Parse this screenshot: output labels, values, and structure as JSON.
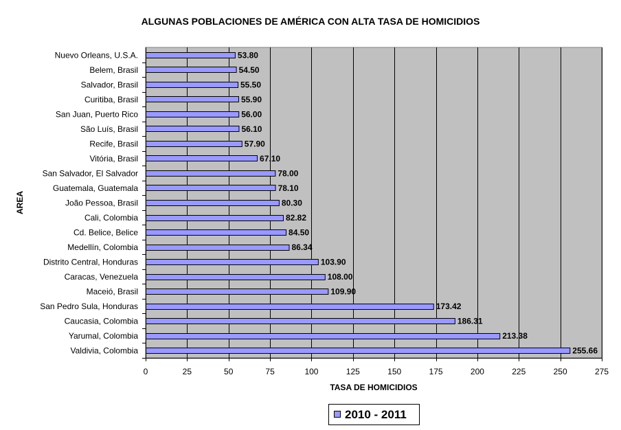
{
  "chart_data": {
    "type": "bar",
    "orientation": "horizontal",
    "title": "ALGUNAS POBLACIONES DE AMÉRICA CON ALTA TASA DE HOMICIDIOS",
    "xlabel": "TASA DE HOMICIDIOS",
    "ylabel": "AREA",
    "xlim": [
      0,
      275
    ],
    "xticks": [
      0,
      25,
      50,
      75,
      100,
      125,
      150,
      175,
      200,
      225,
      250,
      275
    ],
    "grid": true,
    "legend_position": "bottom",
    "plot_background": "#c0c0c0",
    "bar_color": "#9999ff",
    "categories": [
      "Nuevo Orleans, U.S.A.",
      "Belem, Brasil",
      "Salvador, Brasil",
      "Curitiba, Brasil",
      "San Juan, Puerto Rico",
      "São Luís, Brasil",
      "Recife, Brasil",
      "Vitória, Brasil",
      "San Salvador, El Salvador",
      "Guatemala, Guatemala",
      "João Pessoa, Brasil",
      "Cali, Colombia",
      "Cd. Belice, Belice",
      "Medellín, Colombia",
      "Distrito Central, Honduras",
      "Caracas, Venezuela",
      "Maceió, Brasil",
      "San Pedro Sula, Honduras",
      "Caucasia, Colombia",
      "Yarumal, Colombia",
      "Valdivia, Colombia"
    ],
    "series": [
      {
        "name": "2010 - 2011",
        "values": [
          53.8,
          54.5,
          55.5,
          55.9,
          56.0,
          56.1,
          57.9,
          67.1,
          78.0,
          78.1,
          80.3,
          82.82,
          84.5,
          86.34,
          103.9,
          108.0,
          109.9,
          173.42,
          186.31,
          213.38,
          255.66
        ],
        "labels": [
          "53.80",
          "54.50",
          "55.50",
          "55.90",
          "56.00",
          "56.10",
          "57.90",
          "67.10",
          "78.00",
          "78.10",
          "80.30",
          "82.82",
          "84.50",
          "86.34",
          "103.90",
          "108.00",
          "109.90",
          "173.42",
          "186.31",
          "213.38",
          "255.66"
        ]
      }
    ]
  }
}
